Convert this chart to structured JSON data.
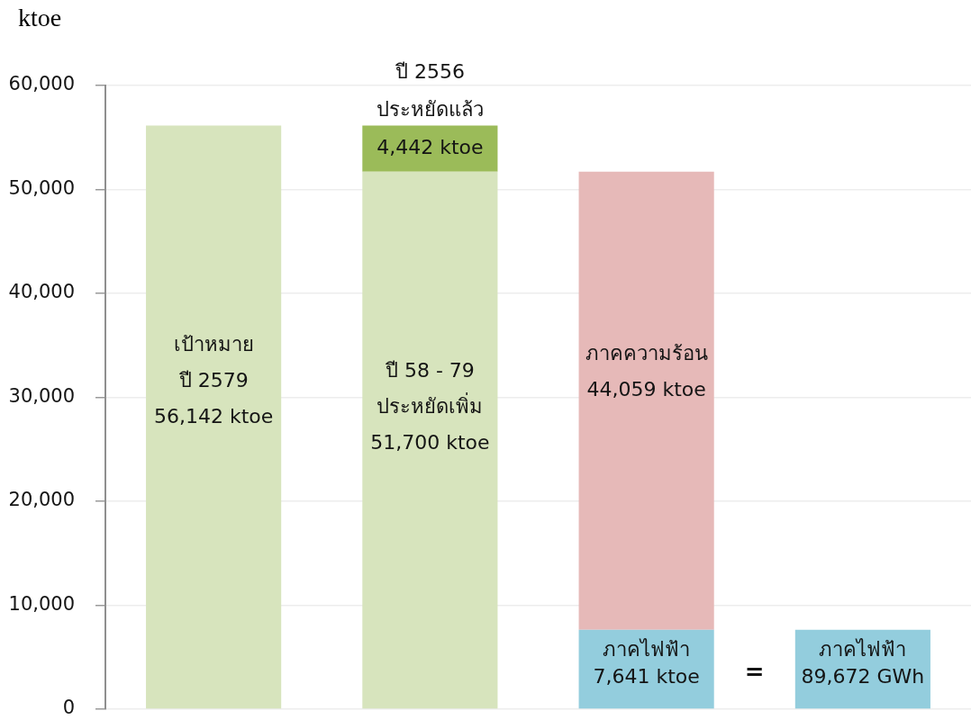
{
  "chart_data": {
    "type": "bar",
    "ylabel": "ktoe",
    "categories": [
      null,
      null,
      null,
      null
    ],
    "stacked": true,
    "series": [
      {
        "color": "#d7e4bd",
        "values": [
          56142,
          51700,
          null,
          null
        ],
        "value_labels": [
          "เป้าหมาย\nปี 2579\n56,142 ktoe",
          "ปี 58 - 79\nประหยัดเพิ่ม\n51,700 ktoe",
          null,
          null
        ]
      },
      {
        "color": "#93cddd",
        "values": [
          null,
          null,
          7641,
          7641
        ],
        "value_labels": [
          null,
          null,
          "ภาคไฟฟ้า\n7,641 ktoe",
          "ภาคไฟฟ้า\n89,672 GWh"
        ]
      },
      {
        "color": "#9bbb59",
        "values": [
          null,
          4442,
          null,
          null
        ],
        "value_labels": [
          null,
          "ปี 2556\nประหยัดแล้ว\n4,442 ktoe",
          null,
          null
        ]
      },
      {
        "color": "#e6b9b8",
        "values": [
          null,
          null,
          44059,
          null
        ],
        "value_labels": [
          null,
          null,
          "ภาคความร้อน\n44,059 ktoe",
          null
        ]
      }
    ],
    "ylim": [
      0,
      60000
    ],
    "yticks": [
      0,
      {
        "value": 10000,
        "label": "10,000"
      },
      {
        "value": 20000,
        "label": "20,000"
      },
      {
        "value": 30000,
        "label": "30,000"
      },
      {
        "value": 40000,
        "label": "40,000"
      },
      {
        "value": 50000,
        "label": "50,000"
      },
      {
        "value": 60000,
        "label": "60,000"
      }
    ],
    "grid": "y",
    "tick_labels": "y",
    "annotations": [
      "="
    ]
  }
}
